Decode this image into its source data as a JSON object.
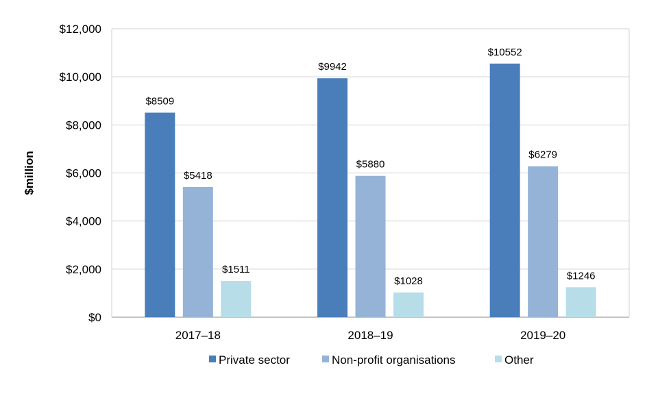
{
  "chart_data": {
    "type": "bar",
    "title": "",
    "xlabel": "",
    "ylabel": "$million",
    "ylim": [
      0,
      12000
    ],
    "yticks": [
      0,
      2000,
      4000,
      6000,
      8000,
      10000,
      12000
    ],
    "ytick_labels": [
      "$0",
      "$2,000",
      "$4,000",
      "$6,000",
      "$8,000",
      "$10,000",
      "$12,000"
    ],
    "grid": true,
    "legend_position": "bottom",
    "categories": [
      "2017–18",
      "2018–19",
      "2019–20"
    ],
    "series": [
      {
        "name": "Private sector",
        "color": "#4a7ebb",
        "values": [
          8509,
          9942,
          10552
        ],
        "labels": [
          "$8509",
          "$9942",
          "$10552"
        ]
      },
      {
        "name": "Non-profit organisations",
        "color": "#95b3d7",
        "values": [
          5418,
          5880,
          6279
        ],
        "labels": [
          "$5418",
          "$5880",
          "$6279"
        ]
      },
      {
        "name": "Other",
        "color": "#b7dee8",
        "values": [
          1511,
          1028,
          1246
        ],
        "labels": [
          "$1511",
          "$1028",
          "$1246"
        ]
      }
    ]
  }
}
